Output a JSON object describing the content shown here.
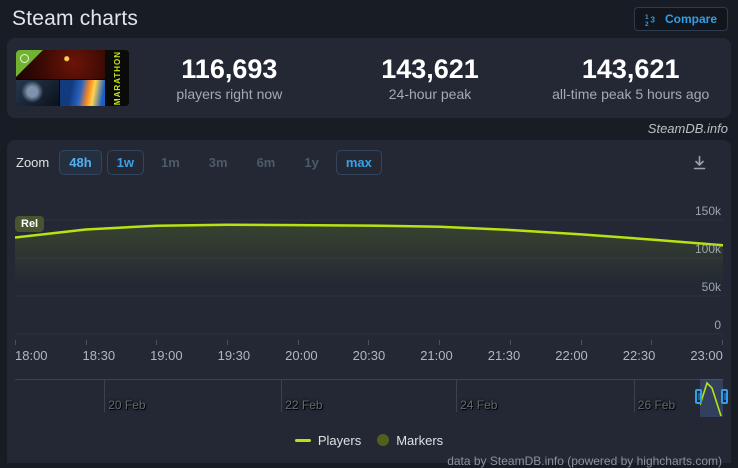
{
  "header": {
    "title": "Steam charts",
    "compare_label": "Compare"
  },
  "game_thumb": {
    "vertical_text": "MARATHON"
  },
  "stats": {
    "current": {
      "value": "116,693",
      "label": "players right now"
    },
    "peak24": {
      "value": "143,621",
      "label": "24-hour peak"
    },
    "alltime": {
      "value": "143,621",
      "label": "all-time peak 5 hours ago"
    }
  },
  "watermark": "SteamDB.info",
  "toolbar": {
    "zoom_label": "Zoom",
    "ranges": [
      {
        "label": "48h",
        "state": "selected"
      },
      {
        "label": "1w",
        "state": "enabled"
      },
      {
        "label": "1m",
        "state": "disabled"
      },
      {
        "label": "3m",
        "state": "disabled"
      },
      {
        "label": "6m",
        "state": "disabled"
      },
      {
        "label": "1y",
        "state": "disabled"
      },
      {
        "label": "max",
        "state": "enabled"
      }
    ]
  },
  "chart_data": {
    "type": "line",
    "title": "Steam charts",
    "x": [
      "18:00",
      "18:30",
      "19:00",
      "19:30",
      "20:00",
      "20:30",
      "21:00",
      "21:30",
      "22:00",
      "22:30",
      "23:00"
    ],
    "series": [
      {
        "name": "Players",
        "color": "#b6e312",
        "values": [
          127000,
          137500,
          142500,
          143621,
          143300,
          142600,
          141200,
          136800,
          131000,
          124200,
          116693
        ]
      }
    ],
    "ylim": [
      0,
      157000
    ],
    "ytick_values": [
      150000,
      100000,
      50000,
      0
    ],
    "ytick_labels": [
      "150k",
      "100k",
      "50k",
      "0"
    ],
    "grid": true,
    "legend_position": "bottom",
    "annotations": [
      {
        "label": "Rel",
        "x": "18:00"
      }
    ]
  },
  "navigator": {
    "dates": [
      "20 Feb",
      "22 Feb",
      "24 Feb",
      "26 Feb"
    ],
    "tick_pos": [
      "12.6%",
      "37.6%",
      "62.3%",
      "87.4%"
    ]
  },
  "legend": {
    "players": {
      "label": "Players",
      "color": "#b6e312"
    },
    "markers": {
      "label": "Markers",
      "color": "#51601f"
    }
  },
  "footer": "data by SteamDB.info (powered by highcharts.com)"
}
